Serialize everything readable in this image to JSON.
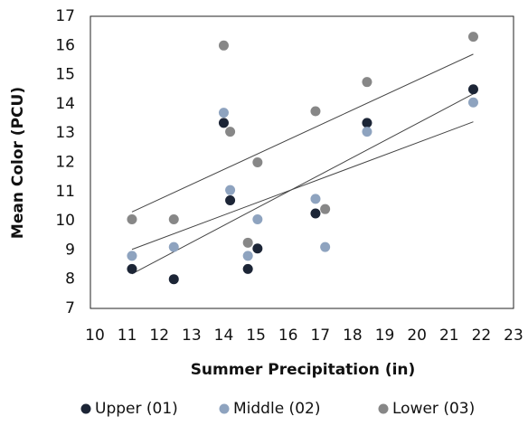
{
  "chart_data": {
    "type": "scatter",
    "x_label": "Summer Precipitation (in)",
    "y_label": "Mean Color (PCU)",
    "xlim": [
      10,
      23
    ],
    "xticks": [
      10,
      11,
      12,
      13,
      14,
      15,
      16,
      17,
      18,
      19,
      20,
      21,
      22,
      23
    ],
    "ylim": [
      7,
      17
    ],
    "yticks": [
      7,
      8,
      9,
      10,
      11,
      12,
      13,
      14,
      15,
      16,
      17
    ],
    "trendline": true,
    "legend": "bottom",
    "series": [
      {
        "name": "Upper (01)",
        "color": "#1c2536",
        "x": [
          11.15,
          12.45,
          14.0,
          14.2,
          14.75,
          15.05,
          16.85,
          18.45,
          21.75
        ],
        "values": [
          8.35,
          8.0,
          13.35,
          10.7,
          8.35,
          9.05,
          10.25,
          13.35,
          14.5
        ]
      },
      {
        "name": "Middle (02)",
        "color": "#8ea3bf",
        "x": [
          11.15,
          12.45,
          14.0,
          14.2,
          14.75,
          15.05,
          16.85,
          17.15,
          18.45,
          21.75
        ],
        "values": [
          8.8,
          9.1,
          13.7,
          11.05,
          8.8,
          10.05,
          10.75,
          9.1,
          13.05,
          14.05
        ]
      },
      {
        "name": "Lower (03)",
        "color": "#878787",
        "x": [
          11.15,
          12.45,
          14.0,
          14.2,
          14.75,
          15.05,
          16.85,
          17.15,
          18.45,
          21.75
        ],
        "values": [
          10.05,
          10.05,
          16.0,
          13.05,
          9.25,
          12.0,
          13.75,
          10.4,
          14.75,
          16.3
        ]
      }
    ]
  }
}
